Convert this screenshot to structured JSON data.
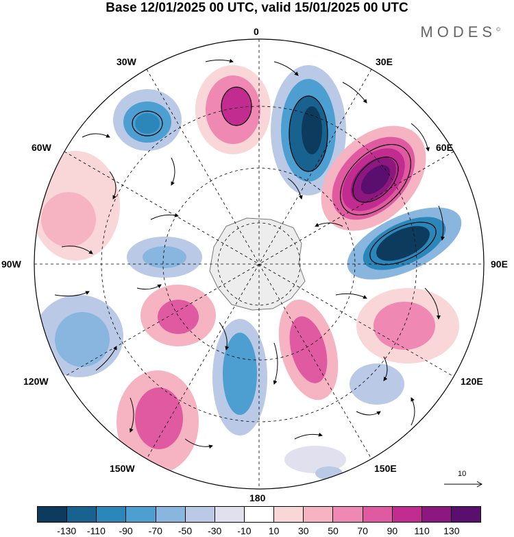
{
  "title": "Base 12/01/2025 00 UTC, valid 15/01/2025 00 UTC",
  "brand": "MODES",
  "brand_mark": "©",
  "map": {
    "projection": "south-polar-stereographic",
    "field": "shaded anomaly with streamlines",
    "longitude_labels": {
      "top": "0",
      "top_right": "30E",
      "right_upper": "60E",
      "right": "90E",
      "right_lower": "120E",
      "bottom_right": "150E",
      "bottom": "180",
      "bottom_left": "150W",
      "left_lower": "120W",
      "left": "90W",
      "left_upper": "60W",
      "top_left": "30W"
    },
    "vector_reference": "10"
  },
  "colorbar": {
    "colors": [
      "#0d3b5e",
      "#17628e",
      "#2b86b9",
      "#4c9fd0",
      "#88b6de",
      "#b9c9e6",
      "#e0e0ef",
      "#ffffff",
      "#f9d6d7",
      "#f6b4c2",
      "#ef88b3",
      "#e05aa2",
      "#c22b8f",
      "#8c177e",
      "#5a0f6e"
    ],
    "tick_labels": [
      "-130",
      "-110",
      "-90",
      "-70",
      "-50",
      "-30",
      "-10",
      "10",
      "30",
      "50",
      "70",
      "90",
      "110",
      "130"
    ]
  }
}
